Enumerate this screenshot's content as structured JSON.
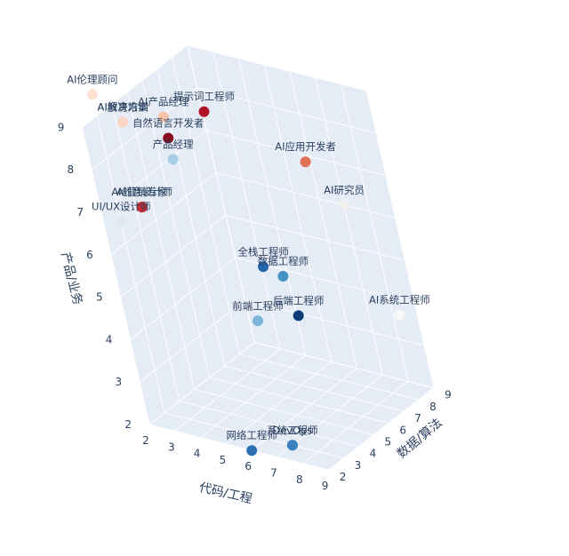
{
  "chart_data": {
    "type": "scatter3d",
    "axes": {
      "x": {
        "title": "代码/工程",
        "range": [
          2,
          9
        ],
        "ticks": [
          "2",
          "3",
          "4",
          "5",
          "6",
          "7",
          "8",
          "9"
        ]
      },
      "y": {
        "title": "数据/算法",
        "range": [
          2,
          9
        ],
        "ticks": [
          "2",
          "3",
          "4",
          "5",
          "6",
          "7",
          "8",
          "9"
        ]
      },
      "z": {
        "title": "产品/业务",
        "range": [
          2,
          9
        ],
        "ticks": [
          "2",
          "3",
          "4",
          "5",
          "6",
          "7",
          "8",
          "9"
        ]
      }
    },
    "grid": true,
    "points": [
      {
        "label": "AI伦理顾问",
        "x": 2,
        "y": 3,
        "z": 9.5,
        "color": "#fde0d2"
      },
      {
        "label": "AI解决方案",
        "x": 3,
        "y": 3,
        "z": 9,
        "color": "#fbd6c4"
      },
      {
        "label": "AI教育培训",
        "x": 3,
        "y": 3,
        "z": 9,
        "color": "#fbd6c4"
      },
      {
        "label": "AI产品经理",
        "x": 4,
        "y": 4,
        "z": 9,
        "color": "#f8c3a8"
      },
      {
        "label": "自然语言开发者",
        "x": 4,
        "y": 4,
        "z": 8.5,
        "color": "#8b0d20"
      },
      {
        "label": "提示词工程师",
        "x": 5,
        "y": 5,
        "z": 9,
        "color": "#b01428"
      },
      {
        "label": "产品经理",
        "x": 4,
        "y": 4,
        "z": 8,
        "color": "#a7cde4"
      },
      {
        "label": "AI创意设计师",
        "x": 3,
        "y": 3,
        "z": 7,
        "color": "#c42d2e"
      },
      {
        "label": "AI营销专家",
        "x": 3,
        "y": 3,
        "z": 7,
        "color": "#c42d2e"
      },
      {
        "label": "UI/UX设计师",
        "x": 2,
        "y": 3,
        "z": 6.5,
        "color": "#dde8f1"
      },
      {
        "label": "AI应用开发者",
        "x": 8,
        "y": 6,
        "z": 8,
        "color": "#e07057"
      },
      {
        "label": "全栈工程师",
        "x": 6,
        "y": 5,
        "z": 5.5,
        "color": "#2166ac"
      },
      {
        "label": "AI研究员",
        "x": 7,
        "y": 9,
        "z": 6,
        "color": "#f2f0ec"
      },
      {
        "label": "数据工程师",
        "x": 6,
        "y": 6,
        "z": 5,
        "color": "#4393c3"
      },
      {
        "label": "前端工程师",
        "x": 6,
        "y": 4,
        "z": 4.5,
        "color": "#7ab5d8"
      },
      {
        "label": "后端工程师",
        "x": 7,
        "y": 5,
        "z": 4.5,
        "color": "#0b3c78"
      },
      {
        "label": "AI系统工程师",
        "x": 9,
        "y": 8,
        "z": 4,
        "color": "#f7f7f7"
      },
      {
        "label": "网络工程师",
        "x": 6,
        "y": 2,
        "z": 2,
        "color": "#2b72b5"
      },
      {
        "label": "系统工程师",
        "x": 7,
        "y": 3,
        "z": 2,
        "color": "#3a83c0"
      },
      {
        "label": "DevOps",
        "x": 7,
        "y": 3,
        "z": 2,
        "color": "#3a83c0"
      }
    ]
  }
}
